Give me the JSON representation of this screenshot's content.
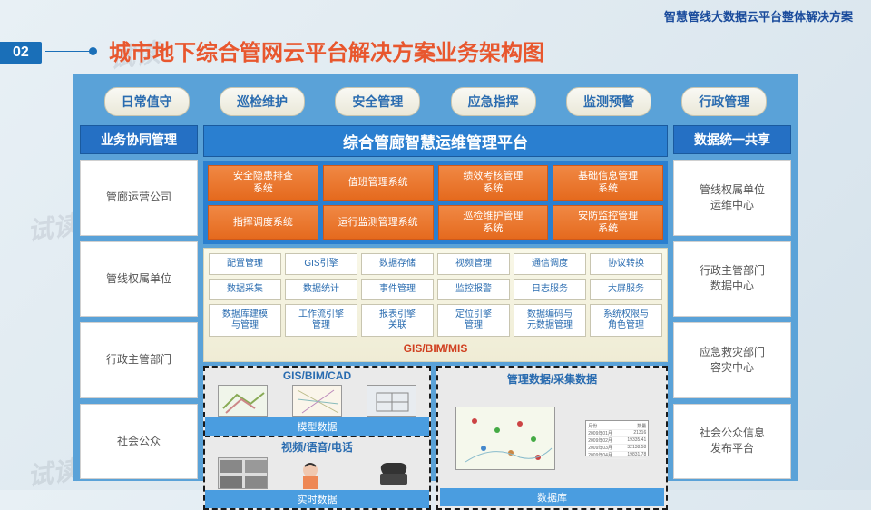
{
  "header_right": "智慧管线大数据云平台整体解决方案",
  "tag": "02",
  "main_title": "城市地下综合管网云平台解决方案业务架构图",
  "watermarks": [
    "试读",
    "试读",
    "试读",
    "试读",
    "试读",
    "试读"
  ],
  "top_pills": [
    "日常值守",
    "巡检维护",
    "安全管理",
    "应急指挥",
    "监测预警",
    "行政管理"
  ],
  "left_col": {
    "header": "业务协同管理",
    "boxes": [
      "管廊运营公司",
      "管线权属单位",
      "行政主管部门",
      "社会公众"
    ]
  },
  "right_col": {
    "header": "数据统一共享",
    "boxes": [
      "管线权属单位\n运维中心",
      "行政主管部门\n数据中心",
      "应急救灾部门\n容灾中心",
      "社会公众信息\n发布平台"
    ]
  },
  "center_title": "综合管廊智慧运维管理平台",
  "orange_rows": [
    [
      "安全隐患排查\n系统",
      "值班管理系统",
      "绩效考核管理\n系统",
      "基础信息管理\n系统"
    ],
    [
      "指挥调度系统",
      "运行监测管理系统",
      "巡检维护管理\n系统",
      "安防监控管理\n系统"
    ]
  ],
  "gray_rows": [
    [
      "配置管理",
      "GIS引擎",
      "数据存储",
      "视频管理",
      "通信调度",
      "协议转换"
    ],
    [
      "数据采集",
      "数据统计",
      "事件管理",
      "监控报警",
      "日志服务",
      "大屏服务"
    ],
    [
      "数据库建模\n与管理",
      "工作流引擎\n管理",
      "报表引擎\n关联",
      "定位引擎\n管理",
      "数据编码与\n元数据管理",
      "系统权限与\n角色管理"
    ]
  ],
  "gis_label": "GIS/BIM/MIS",
  "bottom_panels": {
    "left_top_title": "GIS/BIM/CAD",
    "left_top_caption": "模型数据",
    "left_bottom_title": "视频/语音/电话",
    "left_bottom_caption": "实时数据",
    "right_title": "管理数据/采集数据",
    "right_caption": "数据库",
    "table_headers": [
      "月份",
      "数量"
    ],
    "table_rows": [
      [
        "2009年01月",
        "21316"
      ],
      [
        "2009年02月",
        "19335.41"
      ],
      [
        "2009年03月",
        "32138.58"
      ],
      [
        "2009年04月",
        "19831.78"
      ]
    ]
  },
  "colors": {
    "diagram_bg": "#5aa2d8",
    "title_color": "#e8572e",
    "header_blue": "#2570c4",
    "orange": "#e56a1e",
    "link_blue": "#2a6cb0",
    "gis_red": "#d04020"
  }
}
